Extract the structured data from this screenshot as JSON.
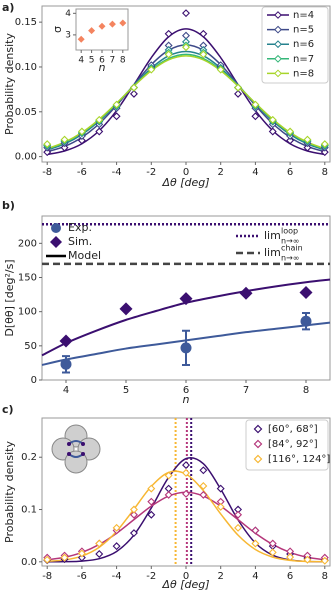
{
  "chart_data": [
    {
      "type": "line",
      "panel_label": "a)",
      "y_label": "Probability density",
      "x_label": "Δθ [deg]",
      "xlim": [
        -8.3,
        8.3
      ],
      "xticks": [
        -8,
        -6,
        -4,
        -2,
        0,
        2,
        4,
        6,
        8
      ],
      "ylim": [
        -0.006,
        0.168
      ],
      "yticks": [
        {
          "value": 0,
          "label": "0.00"
        },
        {
          "value": 0.05,
          "label": "0.05"
        },
        {
          "value": 0.1,
          "label": "0.10"
        },
        {
          "value": 0.15,
          "label": "0.15"
        }
      ],
      "legend": "upper right",
      "x": [
        -8,
        -7,
        -6,
        -5,
        -4,
        -3,
        -2,
        -1,
        0,
        1,
        2,
        3,
        4,
        5,
        6,
        7,
        8
      ],
      "series": [
        {
          "name": "n=4",
          "color": "#3b0f70",
          "values": [
            0.005,
            0.01,
            0.018,
            0.028,
            0.045,
            0.07,
            0.1,
            0.137,
            0.16,
            0.137,
            0.1,
            0.07,
            0.045,
            0.028,
            0.018,
            0.01,
            0.005
          ],
          "fit_values": [
            0.0024,
            0.0063,
            0.0144,
            0.029,
            0.0514,
            0.0803,
            0.1104,
            0.1337,
            0.1425,
            0.1337,
            0.1104,
            0.0803,
            0.0514,
            0.029,
            0.0144,
            0.0063,
            0.0024
          ]
        },
        {
          "name": "n=5",
          "color": "#3e4a89",
          "values": [
            0.01,
            0.015,
            0.023,
            0.036,
            0.054,
            0.077,
            0.102,
            0.124,
            0.135,
            0.124,
            0.102,
            0.077,
            0.054,
            0.036,
            0.023,
            0.015,
            0.01
          ],
          "fit_values": [
            0.0055,
            0.0114,
            0.0215,
            0.0368,
            0.0571,
            0.0803,
            0.1026,
            0.1187,
            0.1247,
            0.1187,
            0.1026,
            0.0803,
            0.0571,
            0.0368,
            0.0215,
            0.0114,
            0.0055
          ]
        },
        {
          "name": "n=6",
          "color": "#26828e",
          "values": [
            0.012,
            0.017,
            0.026,
            0.039,
            0.056,
            0.077,
            0.099,
            0.119,
            0.128,
            0.119,
            0.099,
            0.077,
            0.056,
            0.039,
            0.026,
            0.017,
            0.012
          ],
          "fit_values": [
            0.0074,
            0.0141,
            0.0247,
            0.0398,
            0.0587,
            0.0795,
            0.0987,
            0.1124,
            0.1173,
            0.1124,
            0.0987,
            0.0795,
            0.0587,
            0.0398,
            0.0247,
            0.0141,
            0.0074
          ]
        },
        {
          "name": "n=7",
          "color": "#35b779",
          "values": [
            0.013,
            0.018,
            0.027,
            0.04,
            0.057,
            0.077,
            0.098,
            0.116,
            0.124,
            0.116,
            0.098,
            0.077,
            0.057,
            0.04,
            0.027,
            0.018,
            0.013
          ],
          "fit_values": [
            0.0084,
            0.0154,
            0.0263,
            0.0411,
            0.0594,
            0.079,
            0.0968,
            0.1094,
            0.114,
            0.1094,
            0.0968,
            0.079,
            0.0594,
            0.0411,
            0.0263,
            0.0154,
            0.0084
          ]
        },
        {
          "name": "n=8",
          "color": "#a8d52a",
          "values": [
            0.014,
            0.019,
            0.028,
            0.041,
            0.058,
            0.077,
            0.097,
            0.114,
            0.122,
            0.114,
            0.097,
            0.077,
            0.058,
            0.041,
            0.028,
            0.019,
            0.014
          ],
          "fit_values": [
            0.0089,
            0.0161,
            0.0269,
            0.0417,
            0.0596,
            0.0787,
            0.0959,
            0.108,
            0.1124,
            0.108,
            0.0959,
            0.0787,
            0.0596,
            0.0417,
            0.0269,
            0.0161,
            0.0089
          ]
        }
      ]
    },
    {
      "type": "scatter",
      "y_label": "σ",
      "x_label": "n",
      "xlim": [
        3.5,
        8.5
      ],
      "xticks": [
        4,
        5,
        6,
        7,
        8
      ],
      "ylim": [
        2.3,
        4.2
      ],
      "yticks": [
        3,
        4
      ],
      "x": [
        4,
        5,
        6,
        7,
        8
      ],
      "series": [
        {
          "color": "#f4845f",
          "values": [
            2.8,
            3.2,
            3.4,
            3.5,
            3.55
          ]
        }
      ]
    },
    {
      "type": "scatter",
      "panel_label": "b)",
      "y_label": "D[θθ] [deg²/s]",
      "x_label": "n",
      "xlim": [
        3.6,
        8.4
      ],
      "xticks": [
        4,
        5,
        6,
        7,
        8
      ],
      "ylim": [
        0,
        240
      ],
      "yticks": [
        0,
        50,
        100,
        150,
        200
      ],
      "model_name": "Model",
      "model_x": [
        3.6,
        4,
        4.5,
        5,
        5.5,
        6,
        6.5,
        7,
        7.5,
        8,
        8.4
      ],
      "series": [
        {
          "name": "Exp.",
          "color": "#3e5a9a",
          "marker": "circle",
          "x": [
            4,
            6,
            8
          ],
          "values": [
            23,
            47,
            86
          ],
          "errors": [
            12,
            25,
            12
          ],
          "model_values": [
            22,
            30,
            38,
            46,
            52,
            58,
            64,
            70,
            75,
            80,
            84
          ]
        },
        {
          "name": "Sim.",
          "color": "#3b0f70",
          "marker": "diamond",
          "x": [
            4,
            5,
            6,
            7,
            8
          ],
          "values": [
            57,
            104,
            119,
            127,
            128
          ],
          "model_values": [
            36,
            54,
            72,
            88,
            101,
            113,
            122,
            130,
            137,
            143,
            147
          ]
        }
      ],
      "limits": [
        {
          "name": "lim",
          "sub": "n→∞",
          "sup": "loop",
          "value": 228,
          "color": "#3b0f70",
          "style": "dotted"
        },
        {
          "name": "lim",
          "sub": "n→∞",
          "sup": "chain",
          "value": 170,
          "color": "#444444",
          "style": "dashed"
        }
      ]
    },
    {
      "type": "line",
      "panel_label": "c)",
      "y_label": "Probability density",
      "x_label": "Δθ [deg]",
      "xlim": [
        -8.3,
        8.3
      ],
      "xticks": [
        -8,
        -6,
        -4,
        -2,
        0,
        2,
        4,
        6,
        8
      ],
      "ylim": [
        -0.008,
        0.275
      ],
      "yticks": [
        {
          "value": 0,
          "label": "0.0"
        },
        {
          "value": 0.1,
          "label": "0.1"
        },
        {
          "value": 0.2,
          "label": "0.2"
        }
      ],
      "legend": "upper right",
      "x": [
        -8,
        -7,
        -6,
        -5,
        -4,
        -3,
        -2,
        -1,
        0,
        1,
        2,
        3,
        4,
        5,
        6,
        7,
        8
      ],
      "series": [
        {
          "name": "[60°, 68°]",
          "color": "#3b0f70",
          "mean": 0.3,
          "values": [
            0.003,
            0.005,
            0.008,
            0.015,
            0.03,
            0.055,
            0.09,
            0.14,
            0.185,
            0.175,
            0.14,
            0.1,
            0.06,
            0.03,
            0.015,
            0.007,
            0.003
          ],
          "fit_values": [
            0,
            0.0003,
            0.0014,
            0.006,
            0.0198,
            0.0512,
            0.103,
            0.1615,
            0.1973,
            0.1877,
            0.139,
            0.0802,
            0.036,
            0.0126,
            0.0034,
            0.0007,
            0.0001
          ]
        },
        {
          "name": "[84°, 92°]",
          "color": "#b5367a",
          "mean": 0.05,
          "values": [
            0.008,
            0.012,
            0.02,
            0.035,
            0.06,
            0.09,
            0.115,
            0.128,
            0.13,
            0.128,
            0.115,
            0.09,
            0.06,
            0.035,
            0.02,
            0.012,
            0.008
          ],
          "fit_values": [
            0.0038,
            0.0087,
            0.018,
            0.0332,
            0.0547,
            0.0807,
            0.1065,
            0.1258,
            0.133,
            0.1258,
            0.1065,
            0.0807,
            0.0547,
            0.0332,
            0.018,
            0.0087,
            0.0038
          ]
        },
        {
          "name": "[116°, 124°]",
          "color": "#f7b733",
          "mean": -0.6,
          "values": [
            0.004,
            0.008,
            0.016,
            0.035,
            0.065,
            0.1,
            0.14,
            0.165,
            0.17,
            0.145,
            0.105,
            0.065,
            0.035,
            0.018,
            0.009,
            0.004,
            0.002
          ],
          "fit_values": [
            0.001,
            0.0036,
            0.011,
            0.0278,
            0.0582,
            0.1007,
            0.1442,
            0.1709,
            0.1677,
            0.1362,
            0.0916,
            0.051,
            0.0235,
            0.009,
            0.0028,
            0.0007,
            0.0002
          ]
        }
      ]
    }
  ]
}
